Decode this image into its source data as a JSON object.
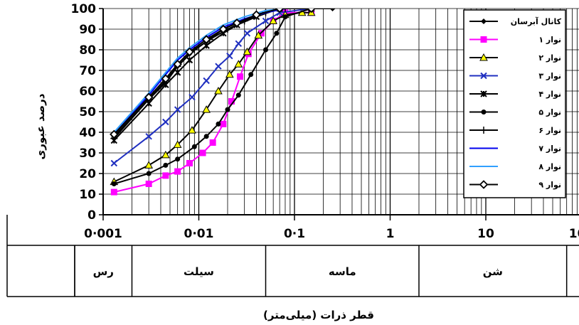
{
  "chart_data": {
    "type": "line",
    "xlabel": "قطر ذرات (میلی‌متر)",
    "ylabel": "درصد عبوری",
    "x_scale": "log",
    "xlim": [
      0.001,
      100
    ],
    "ylim": [
      0,
      100
    ],
    "y_ticks": [
      0,
      10,
      20,
      30,
      40,
      50,
      60,
      70,
      80,
      90,
      100
    ],
    "y_tick_labels": [
      "0",
      "10",
      "20",
      "30",
      "40",
      "50",
      "60",
      "70",
      "80",
      "90",
      "100"
    ],
    "x_ticks": [
      0.001,
      0.01,
      0.1,
      1,
      10,
      100
    ],
    "x_tick_labels": [
      "0·001",
      "0·01",
      "0·1",
      "1",
      "10",
      "100"
    ],
    "grid": true,
    "legend_position": "top-right",
    "soil_zones": [
      {
        "label": "رس",
        "from": 0.00055,
        "to": 0.002
      },
      {
        "label": "سیلت",
        "from": 0.002,
        "to": 0.05
      },
      {
        "label": "ماسه",
        "from": 0.05,
        "to": 2
      },
      {
        "label": "شن",
        "from": 2,
        "to": 70
      }
    ],
    "series": [
      {
        "name": "کانال آبرسان",
        "color": "#000000",
        "marker": "diamond",
        "points": [
          [
            0.0013,
            38
          ],
          [
            0.003,
            56
          ],
          [
            0.0045,
            64
          ],
          [
            0.006,
            72
          ],
          [
            0.008,
            78
          ],
          [
            0.012,
            84
          ],
          [
            0.018,
            90
          ],
          [
            0.025,
            93
          ],
          [
            0.04,
            97
          ],
          [
            0.07,
            100
          ],
          [
            0.15,
            100
          ],
          [
            0.25,
            100
          ]
        ]
      },
      {
        "name": "نوار ۱",
        "color": "#ff00ff",
        "marker": "square",
        "points": [
          [
            0.0013,
            11
          ],
          [
            0.003,
            15
          ],
          [
            0.0045,
            19
          ],
          [
            0.006,
            21
          ],
          [
            0.008,
            25
          ],
          [
            0.011,
            30
          ],
          [
            0.014,
            35
          ],
          [
            0.018,
            44
          ],
          [
            0.022,
            55
          ],
          [
            0.027,
            67
          ],
          [
            0.033,
            78
          ],
          [
            0.045,
            88
          ],
          [
            0.06,
            94
          ],
          [
            0.08,
            98
          ],
          [
            0.15,
            98
          ]
        ]
      },
      {
        "name": "نوار ۲",
        "color": "#000000",
        "marker": "triangle",
        "marker_fill": "#ffff00",
        "points": [
          [
            0.0013,
            16
          ],
          [
            0.003,
            24
          ],
          [
            0.0045,
            29
          ],
          [
            0.006,
            34
          ],
          [
            0.0085,
            41
          ],
          [
            0.012,
            51
          ],
          [
            0.016,
            60
          ],
          [
            0.021,
            68
          ],
          [
            0.026,
            73
          ],
          [
            0.032,
            79
          ],
          [
            0.042,
            87
          ],
          [
            0.06,
            94
          ],
          [
            0.08,
            97
          ],
          [
            0.12,
            98
          ],
          [
            0.15,
            98
          ]
        ]
      },
      {
        "name": "نوار ۳",
        "color": "#2030c0",
        "marker": "x",
        "points": [
          [
            0.0013,
            25
          ],
          [
            0.003,
            38
          ],
          [
            0.0045,
            45
          ],
          [
            0.006,
            51
          ],
          [
            0.0085,
            57
          ],
          [
            0.012,
            65
          ],
          [
            0.016,
            72
          ],
          [
            0.021,
            77
          ],
          [
            0.026,
            83
          ],
          [
            0.032,
            88
          ],
          [
            0.05,
            94
          ],
          [
            0.07,
            98
          ],
          [
            0.15,
            100
          ]
        ]
      },
      {
        "name": "نوار ۴",
        "color": "#000000",
        "marker": "star",
        "points": [
          [
            0.0013,
            36
          ],
          [
            0.003,
            54
          ],
          [
            0.0045,
            63
          ],
          [
            0.006,
            69
          ],
          [
            0.008,
            75
          ],
          [
            0.012,
            82
          ],
          [
            0.018,
            88
          ],
          [
            0.025,
            92
          ],
          [
            0.04,
            96
          ],
          [
            0.07,
            100
          ],
          [
            0.15,
            100
          ]
        ]
      },
      {
        "name": "نوار ۵",
        "color": "#000000",
        "marker": "circle",
        "points": [
          [
            0.0013,
            15
          ],
          [
            0.003,
            20
          ],
          [
            0.0045,
            24
          ],
          [
            0.006,
            27
          ],
          [
            0.009,
            33
          ],
          [
            0.012,
            38
          ],
          [
            0.016,
            44
          ],
          [
            0.02,
            51
          ],
          [
            0.026,
            58
          ],
          [
            0.035,
            68
          ],
          [
            0.05,
            80
          ],
          [
            0.065,
            88
          ],
          [
            0.08,
            96
          ],
          [
            0.15,
            100
          ]
        ]
      },
      {
        "name": "نوار ۶",
        "color": "#000000",
        "marker": "plus",
        "points": [
          [
            0.0013,
            37
          ],
          [
            0.003,
            56
          ],
          [
            0.0045,
            65
          ],
          [
            0.006,
            72
          ],
          [
            0.009,
            80
          ],
          [
            0.013,
            85
          ],
          [
            0.02,
            90
          ],
          [
            0.03,
            94
          ],
          [
            0.05,
            98
          ],
          [
            0.08,
            100
          ],
          [
            0.15,
            100
          ]
        ]
      },
      {
        "name": "نوار ۷",
        "color": "#0000ee",
        "marker": "none",
        "points": [
          [
            0.0013,
            39
          ],
          [
            0.003,
            58
          ],
          [
            0.0045,
            68
          ],
          [
            0.006,
            75
          ],
          [
            0.008,
            80
          ],
          [
            0.012,
            86
          ],
          [
            0.018,
            91
          ],
          [
            0.03,
            95
          ],
          [
            0.05,
            98
          ],
          [
            0.08,
            100
          ],
          [
            0.15,
            100
          ]
        ]
      },
      {
        "name": "نوار ۸",
        "color": "#30a0ff",
        "marker": "none",
        "points": [
          [
            0.0013,
            40
          ],
          [
            0.003,
            59
          ],
          [
            0.0045,
            69
          ],
          [
            0.006,
            76
          ],
          [
            0.008,
            81
          ],
          [
            0.012,
            87
          ],
          [
            0.018,
            92
          ],
          [
            0.03,
            96
          ],
          [
            0.05,
            99
          ],
          [
            0.08,
            100
          ],
          [
            0.15,
            100
          ]
        ]
      },
      {
        "name": "نوار ۹",
        "color": "#000000",
        "marker": "diamond-open",
        "points": [
          [
            0.0013,
            39
          ],
          [
            0.003,
            57
          ],
          [
            0.0045,
            66
          ],
          [
            0.006,
            73
          ],
          [
            0.008,
            79
          ],
          [
            0.012,
            85
          ],
          [
            0.018,
            90
          ],
          [
            0.025,
            93
          ],
          [
            0.04,
            97
          ],
          [
            0.07,
            100
          ],
          [
            0.15,
            100
          ]
        ]
      }
    ]
  }
}
